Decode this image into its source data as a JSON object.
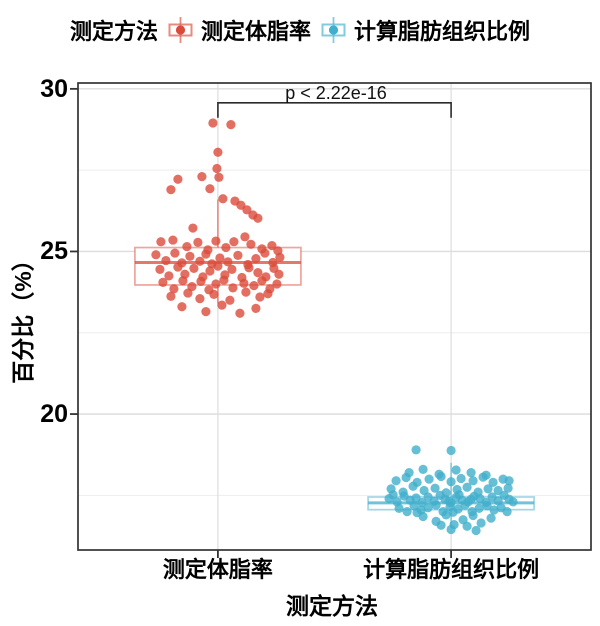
{
  "legend": {
    "title": "测定方法",
    "items": [
      {
        "label": "测定体脂率",
        "color": "#DB4B3A"
      },
      {
        "label": "计算脂肪组织比例",
        "color": "#41AFCC"
      }
    ]
  },
  "y_axis": {
    "title": "百分比（%）",
    "tick_labels": [
      "30",
      "25",
      "20"
    ]
  },
  "x_axis": {
    "title": "测定方法",
    "tick_labels": [
      "测定体脂率",
      "计算脂肪组织比例"
    ]
  },
  "annotation": {
    "p_value": "p < 2.22e-16"
  },
  "colors": {
    "grid_major": "#DCDCDC",
    "grid_minor": "#EDEDED",
    "border": "#333333",
    "tick": "#333333",
    "bracket": "#2B2B2B"
  },
  "chart_data": {
    "type": "boxplot",
    "subtype": "boxplot-with-jitter",
    "title": "",
    "xlabel": "测定方法",
    "ylabel": "百分比（%）",
    "ylim_panel": [
      15.82,
      30.18
    ],
    "y_major_ticks": [
      30,
      25,
      20
    ],
    "y_minor_ticks": [
      27.5,
      22.5,
      17.5
    ],
    "grid": true,
    "legend_position": "top",
    "significance": {
      "label": "p < 2.22e-16",
      "bar_y": 29.57,
      "tick_drop": 0.46
    },
    "groups": [
      {
        "name": "测定体脂率",
        "color": "#DB4B3A",
        "box": {
          "q1": 23.97,
          "median": 24.66,
          "q3": 25.12,
          "whisker_low": 23.4,
          "whisker_high": 26.6
        },
        "points": [
          [
            -5,
            28.95
          ],
          [
            13,
            28.9
          ],
          [
            0,
            28.05
          ],
          [
            -1,
            27.55
          ],
          [
            -16,
            27.3
          ],
          [
            1,
            27.28
          ],
          [
            -40,
            27.22
          ],
          [
            -47,
            26.9
          ],
          [
            -8,
            26.93
          ],
          [
            5,
            26.62
          ],
          [
            17,
            26.55
          ],
          [
            23,
            26.42
          ],
          [
            29,
            26.28
          ],
          [
            35,
            26.12
          ],
          [
            40,
            26.02
          ],
          [
            -25,
            25.72
          ],
          [
            27,
            25.45
          ],
          [
            -57,
            25.3
          ],
          [
            -45,
            25.35
          ],
          [
            -31,
            25.15
          ],
          [
            -20,
            25.28
          ],
          [
            -10,
            25.05
          ],
          [
            -2,
            25.32
          ],
          [
            8,
            25.12
          ],
          [
            16,
            25.3
          ],
          [
            33,
            25.22
          ],
          [
            44,
            25.08
          ],
          [
            54,
            25.18
          ],
          [
            60,
            25.02
          ],
          [
            -62,
            24.9
          ],
          [
            -52,
            24.72
          ],
          [
            -43,
            24.95
          ],
          [
            -36,
            24.65
          ],
          [
            -28,
            24.85
          ],
          [
            -18,
            24.7
          ],
          [
            -12,
            24.92
          ],
          [
            -6,
            24.62
          ],
          [
            2,
            24.8
          ],
          [
            10,
            24.68
          ],
          [
            20,
            24.88
          ],
          [
            30,
            24.6
          ],
          [
            38,
            24.78
          ],
          [
            47,
            24.95
          ],
          [
            55,
            24.66
          ],
          [
            62,
            24.82
          ],
          [
            -58,
            24.45
          ],
          [
            -49,
            24.25
          ],
          [
            -40,
            24.52
          ],
          [
            -33,
            24.3
          ],
          [
            -24,
            24.48
          ],
          [
            -15,
            24.22
          ],
          [
            -8,
            24.4
          ],
          [
            0,
            24.55
          ],
          [
            7,
            24.28
          ],
          [
            14,
            24.45
          ],
          [
            24,
            24.2
          ],
          [
            31,
            24.5
          ],
          [
            40,
            24.35
          ],
          [
            48,
            24.22
          ],
          [
            56,
            24.48
          ],
          [
            61,
            24.3
          ],
          [
            -55,
            24.05
          ],
          [
            -44,
            23.85
          ],
          [
            -35,
            24.1
          ],
          [
            -26,
            23.92
          ],
          [
            -17,
            24.08
          ],
          [
            -9,
            23.82
          ],
          [
            -2,
            24.0
          ],
          [
            6,
            24.12
          ],
          [
            15,
            23.88
          ],
          [
            26,
            24.02
          ],
          [
            36,
            23.95
          ],
          [
            44,
            24.1
          ],
          [
            52,
            23.85
          ],
          [
            59,
            24.0
          ],
          [
            -47,
            23.62
          ],
          [
            -30,
            23.72
          ],
          [
            -18,
            23.55
          ],
          [
            -4,
            23.68
          ],
          [
            12,
            23.5
          ],
          [
            28,
            23.75
          ],
          [
            42,
            23.6
          ],
          [
            50,
            23.7
          ],
          [
            -36,
            23.3
          ],
          [
            -12,
            23.15
          ],
          [
            4,
            23.35
          ],
          [
            22,
            23.1
          ],
          [
            38,
            23.25
          ]
        ]
      },
      {
        "name": "计算脂肪组织比例",
        "color": "#41AFCC",
        "box": {
          "q1": 17.06,
          "median": 17.27,
          "q3": 17.45,
          "whisker_low": 16.5,
          "whisker_high": 18.5
        },
        "points": [
          [
            -35,
            18.9
          ],
          [
            0,
            18.88
          ],
          [
            -42,
            18.2
          ],
          [
            -28,
            18.3
          ],
          [
            -12,
            18.15
          ],
          [
            5,
            18.28
          ],
          [
            20,
            18.2
          ],
          [
            35,
            18.12
          ],
          [
            -55,
            17.95
          ],
          [
            -45,
            18.05
          ],
          [
            -34,
            17.9
          ],
          [
            -22,
            18.0
          ],
          [
            -10,
            18.08
          ],
          [
            0,
            17.92
          ],
          [
            10,
            18.02
          ],
          [
            22,
            17.95
          ],
          [
            32,
            18.06
          ],
          [
            42,
            17.9
          ],
          [
            52,
            18.0
          ],
          [
            58,
            17.95
          ],
          [
            -60,
            17.7
          ],
          [
            -48,
            17.6
          ],
          [
            -38,
            17.78
          ],
          [
            -27,
            17.65
          ],
          [
            -16,
            17.72
          ],
          [
            -5,
            17.58
          ],
          [
            6,
            17.68
          ],
          [
            16,
            17.75
          ],
          [
            27,
            17.6
          ],
          [
            37,
            17.7
          ],
          [
            47,
            17.65
          ],
          [
            57,
            17.72
          ],
          [
            -62,
            17.4
          ],
          [
            -58,
            17.52
          ],
          [
            -54,
            17.3
          ],
          [
            -47,
            17.48
          ],
          [
            -41,
            17.35
          ],
          [
            -35,
            17.42
          ],
          [
            -29,
            17.28
          ],
          [
            -23,
            17.45
          ],
          [
            -17,
            17.32
          ],
          [
            -11,
            17.5
          ],
          [
            -6,
            17.38
          ],
          [
            -2,
            17.32
          ],
          [
            0,
            17.27
          ],
          [
            5,
            17.44
          ],
          [
            8,
            17.52
          ],
          [
            11,
            17.35
          ],
          [
            17,
            17.3
          ],
          [
            20,
            17.38
          ],
          [
            23,
            17.47
          ],
          [
            29,
            17.4
          ],
          [
            35,
            17.28
          ],
          [
            41,
            17.45
          ],
          [
            47,
            17.33
          ],
          [
            53,
            17.5
          ],
          [
            58,
            17.38
          ],
          [
            62,
            17.3
          ],
          [
            -52,
            17.1
          ],
          [
            -44,
            17.0
          ],
          [
            -37,
            17.18
          ],
          [
            -34,
            16.97
          ],
          [
            -30,
            17.05
          ],
          [
            -23,
            17.12
          ],
          [
            -15,
            17.2
          ],
          [
            -8,
            17.0
          ],
          [
            -1,
            17.15
          ],
          [
            2,
            16.98
          ],
          [
            7,
            17.08
          ],
          [
            14,
            17.2
          ],
          [
            21,
            17.0
          ],
          [
            28,
            17.1
          ],
          [
            36,
            17.18
          ],
          [
            43,
            17.05
          ],
          [
            50,
            17.12
          ],
          [
            56,
            17.0
          ],
          [
            -28,
            16.85
          ],
          [
            -15,
            16.7
          ],
          [
            -10,
            16.58
          ],
          [
            -5,
            16.9
          ],
          [
            3,
            16.6
          ],
          [
            12,
            16.75
          ],
          [
            16,
            16.55
          ],
          [
            22,
            16.88
          ],
          [
            30,
            16.65
          ],
          [
            40,
            16.8
          ],
          [
            0,
            16.45
          ],
          [
            25,
            16.42
          ]
        ]
      }
    ]
  }
}
